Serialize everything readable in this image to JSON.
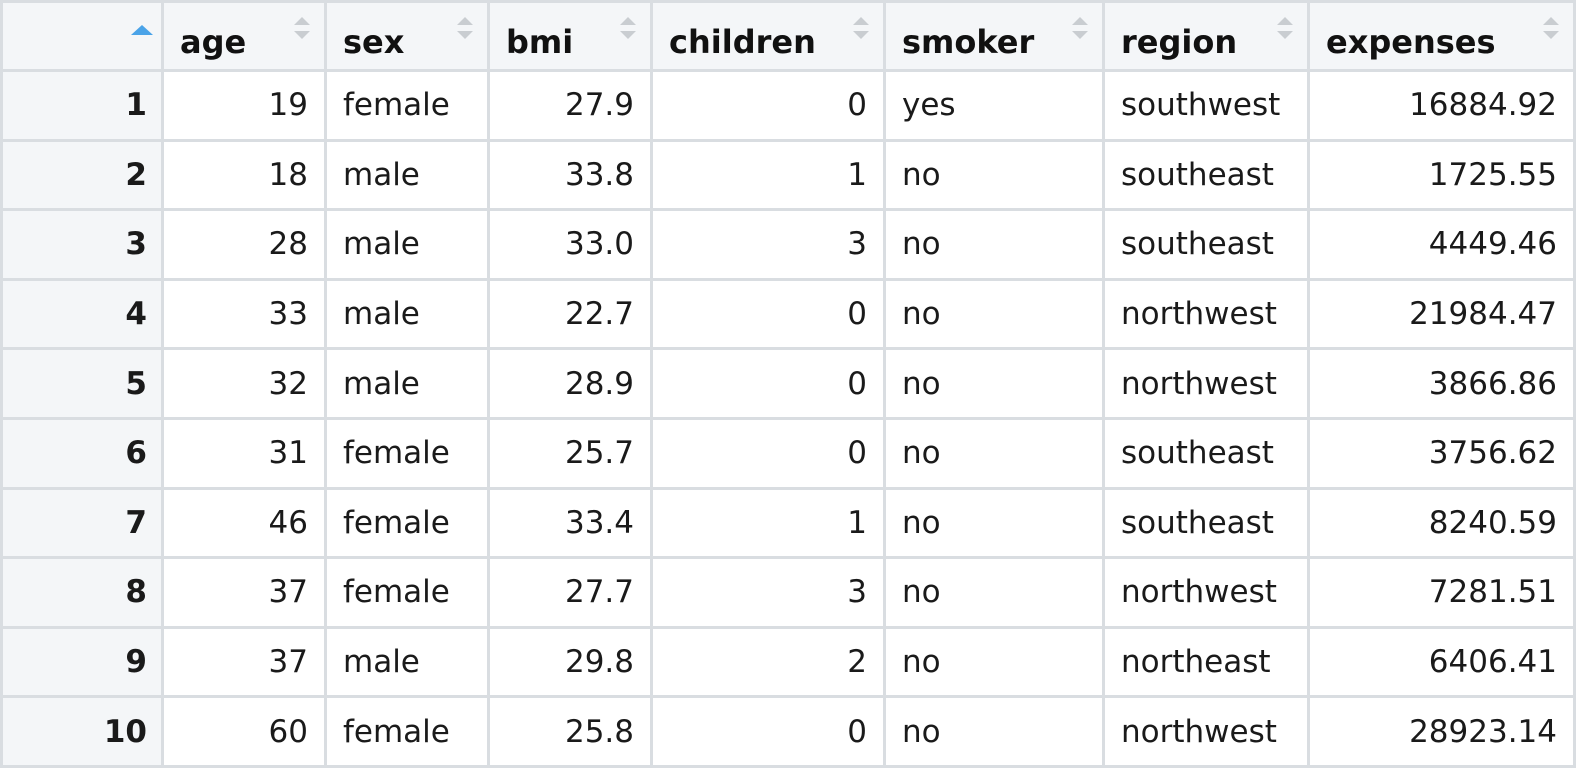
{
  "columns": [
    {
      "label": "age",
      "align": "num"
    },
    {
      "label": "sex",
      "align": "txt"
    },
    {
      "label": "bmi",
      "align": "num"
    },
    {
      "label": "children",
      "align": "num"
    },
    {
      "label": "smoker",
      "align": "txt"
    },
    {
      "label": "region",
      "align": "txt"
    },
    {
      "label": "expenses",
      "align": "num"
    }
  ],
  "sort": {
    "column": "row-index",
    "direction": "ascending",
    "indicator_color": "#4aa3e8"
  },
  "rows": [
    {
      "n": "1",
      "cells": [
        "19",
        "female",
        "27.9",
        "0",
        "yes",
        "southwest",
        "16884.92"
      ]
    },
    {
      "n": "2",
      "cells": [
        "18",
        "male",
        "33.8",
        "1",
        "no",
        "southeast",
        "1725.55"
      ]
    },
    {
      "n": "3",
      "cells": [
        "28",
        "male",
        "33.0",
        "3",
        "no",
        "southeast",
        "4449.46"
      ]
    },
    {
      "n": "4",
      "cells": [
        "33",
        "male",
        "22.7",
        "0",
        "no",
        "northwest",
        "21984.47"
      ]
    },
    {
      "n": "5",
      "cells": [
        "32",
        "male",
        "28.9",
        "0",
        "no",
        "northwest",
        "3866.86"
      ]
    },
    {
      "n": "6",
      "cells": [
        "31",
        "female",
        "25.7",
        "0",
        "no",
        "southeast",
        "3756.62"
      ]
    },
    {
      "n": "7",
      "cells": [
        "46",
        "female",
        "33.4",
        "1",
        "no",
        "southeast",
        "8240.59"
      ]
    },
    {
      "n": "8",
      "cells": [
        "37",
        "female",
        "27.7",
        "3",
        "no",
        "northwest",
        "7281.51"
      ]
    },
    {
      "n": "9",
      "cells": [
        "37",
        "male",
        "29.8",
        "2",
        "no",
        "northeast",
        "6406.41"
      ]
    },
    {
      "n": "10",
      "cells": [
        "60",
        "female",
        "25.8",
        "0",
        "no",
        "northwest",
        "28923.14"
      ]
    }
  ]
}
